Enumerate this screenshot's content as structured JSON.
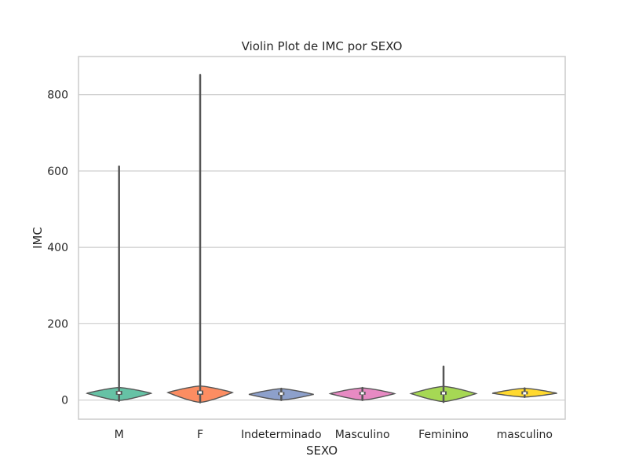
{
  "chart_data": {
    "type": "violin",
    "title": "Violin Plot de IMC por SEXO",
    "xlabel": "SEXO",
    "ylabel": "IMC",
    "ylim": [
      -50,
      900
    ],
    "yticks": [
      0,
      200,
      400,
      600,
      800
    ],
    "ytick_labels": [
      "0",
      "200",
      "400",
      "600",
      "800"
    ],
    "grid": true,
    "categories": [
      "M",
      "F",
      "Indeterminado",
      "Masculino",
      "Feminino",
      "masculino"
    ],
    "colors": [
      "#66c2a5",
      "#fc8d62",
      "#8da0cb",
      "#e78ac3",
      "#a6d854",
      "#ffd92f"
    ],
    "series": [
      {
        "category": "M",
        "min": -2,
        "q1": 14,
        "median": 19,
        "q3": 24,
        "max": 612,
        "violin_bottom": -1,
        "violin_top": 33,
        "peak": 18
      },
      {
        "category": "F",
        "min": -6,
        "q1": 14,
        "median": 20,
        "q3": 25,
        "max": 852,
        "violin_bottom": -6,
        "violin_top": 37,
        "peak": 20
      },
      {
        "category": "Indeterminado",
        "min": 0,
        "q1": 13,
        "median": 17,
        "q3": 21,
        "max": 30,
        "violin_bottom": 0,
        "violin_top": 30,
        "peak": 15
      },
      {
        "category": "Masculino",
        "min": 0,
        "q1": 14,
        "median": 18,
        "q3": 22,
        "max": 32,
        "violin_bottom": 0,
        "violin_top": 32,
        "peak": 17
      },
      {
        "category": "Feminino",
        "min": -5,
        "q1": 14,
        "median": 18,
        "q3": 23,
        "max": 88,
        "violin_bottom": -4,
        "violin_top": 36,
        "peak": 17
      },
      {
        "category": "masculino",
        "min": 8,
        "q1": 15,
        "median": 18,
        "q3": 23,
        "max": 31,
        "violin_bottom": 8,
        "violin_top": 31,
        "peak": 18
      }
    ]
  }
}
